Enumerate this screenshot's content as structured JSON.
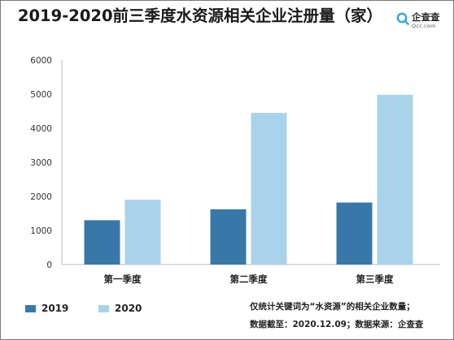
{
  "chart_data": {
    "type": "bar",
    "title": "2019-2020前三季度水资源相关企业注册量（家）",
    "categories": [
      "第一季度",
      "第二季度",
      "第三季度"
    ],
    "series": [
      {
        "name": "2019",
        "values": [
          1300,
          1620,
          1820
        ],
        "color": "#3878a8"
      },
      {
        "name": "2020",
        "values": [
          1900,
          4450,
          4980
        ],
        "color": "#a9d3ea"
      }
    ],
    "ylim": [
      0,
      6000
    ],
    "yticks": [
      0,
      1000,
      2000,
      3000,
      4000,
      5000,
      6000
    ],
    "ytick_labels": [
      "0",
      "1000",
      "2000",
      "3000",
      "4000",
      "5000",
      "6000"
    ],
    "xlabel": "",
    "ylabel": "",
    "grid": false,
    "legend": "bottom-left"
  },
  "brand": {
    "name": "企查查",
    "domain": "Qcc.com",
    "color": "#2aa7e0"
  },
  "notes": {
    "line1": "仅统计关键词为“水资源”的相关企业数量；",
    "line2": "数据截至：2020.12.09；数据来源：企查查"
  }
}
